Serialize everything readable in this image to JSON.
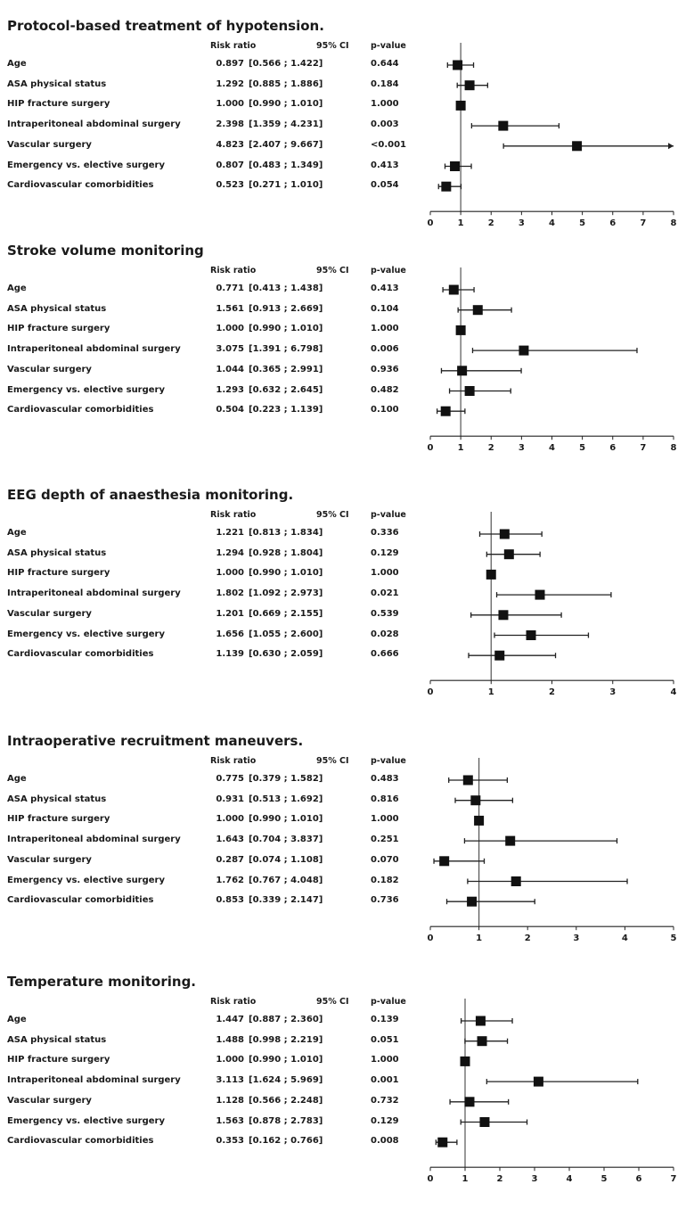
{
  "headers": {
    "risk_ratio": "Risk ratio",
    "ci": "95% CI",
    "p_value": "p-value"
  },
  "panels": [
    {
      "title": "Protocol-based treatment of hypotension.",
      "rows": [
        {
          "label": "Age",
          "rr_text": "0.897",
          "ci_text": "[0.566 ; 1.422]",
          "p_text": "0.644"
        },
        {
          "label": "ASA physical status",
          "rr_text": "1.292",
          "ci_text": "[0.885 ; 1.886]",
          "p_text": "0.184"
        },
        {
          "label": "HIP fracture surgery",
          "rr_text": "1.000",
          "ci_text": "[0.990 ; 1.010]",
          "p_text": "1.000"
        },
        {
          "label": "Intraperitoneal abdominal surgery",
          "rr_text": "2.398",
          "ci_text": "[1.359 ; 4.231]",
          "p_text": "0.003"
        },
        {
          "label": "Vascular surgery",
          "rr_text": "4.823",
          "ci_text": "[2.407 ; 9.667]",
          "p_text": "<0.001"
        },
        {
          "label": "Emergency vs. elective surgery",
          "rr_text": "0.807",
          "ci_text": "[0.483 ; 1.349]",
          "p_text": "0.413"
        },
        {
          "label": "Cardiovascular comorbidities",
          "rr_text": "0.523",
          "ci_text": "[0.271 ; 1.010]",
          "p_text": "0.054"
        }
      ]
    },
    {
      "title": "Stroke volume monitoring",
      "rows": [
        {
          "label": "Age",
          "rr_text": "0.771",
          "ci_text": "[0.413 ; 1.438]",
          "p_text": "0.413"
        },
        {
          "label": "ASA physical status",
          "rr_text": "1.561",
          "ci_text": "[0.913 ; 2.669]",
          "p_text": "0.104"
        },
        {
          "label": "HIP fracture surgery",
          "rr_text": "1.000",
          "ci_text": "[0.990 ; 1.010]",
          "p_text": "1.000"
        },
        {
          "label": "Intraperitoneal abdominal surgery",
          "rr_text": "3.075",
          "ci_text": "[1.391 ; 6.798]",
          "p_text": "0.006"
        },
        {
          "label": "Vascular surgery",
          "rr_text": "1.044",
          "ci_text": "[0.365 ; 2.991]",
          "p_text": "0.936"
        },
        {
          "label": "Emergency vs. elective surgery",
          "rr_text": "1.293",
          "ci_text": "[0.632 ; 2.645]",
          "p_text": "0.482"
        },
        {
          "label": "Cardiovascular comorbidities",
          "rr_text": "0.504",
          "ci_text": "[0.223 ; 1.139]",
          "p_text": "0.100"
        }
      ]
    },
    {
      "title": "EEG depth of anaesthesia monitoring.",
      "rows": [
        {
          "label": "Age",
          "rr_text": "1.221",
          "ci_text": "[0.813 ; 1.834]",
          "p_text": "0.336"
        },
        {
          "label": "ASA physical status",
          "rr_text": "1.294",
          "ci_text": "[0.928 ; 1.804]",
          "p_text": "0.129"
        },
        {
          "label": "HIP fracture surgery",
          "rr_text": "1.000",
          "ci_text": "[0.990 ; 1.010]",
          "p_text": "1.000"
        },
        {
          "label": "Intraperitoneal abdominal surgery",
          "rr_text": "1.802",
          "ci_text": "[1.092 ; 2.973]",
          "p_text": "0.021"
        },
        {
          "label": "Vascular surgery",
          "rr_text": "1.201",
          "ci_text": "[0.669 ; 2.155]",
          "p_text": "0.539"
        },
        {
          "label": "Emergency vs. elective surgery",
          "rr_text": "1.656",
          "ci_text": "[1.055 ; 2.600]",
          "p_text": "0.028"
        },
        {
          "label": "Cardiovascular comorbidities",
          "rr_text": "1.139",
          "ci_text": "[0.630 ; 2.059]",
          "p_text": "0.666"
        }
      ]
    },
    {
      "title": "Intraoperative recruitment maneuvers.",
      "rows": [
        {
          "label": "Age",
          "rr_text": "0.775",
          "ci_text": "[0.379 ; 1.582]",
          "p_text": "0.483"
        },
        {
          "label": "ASA physical status",
          "rr_text": "0.931",
          "ci_text": "[0.513 ; 1.692]",
          "p_text": "0.816"
        },
        {
          "label": "HIP fracture surgery",
          "rr_text": "1.000",
          "ci_text": "[0.990 ; 1.010]",
          "p_text": "1.000"
        },
        {
          "label": "Intraperitoneal abdominal surgery",
          "rr_text": "1.643",
          "ci_text": "[0.704 ; 3.837]",
          "p_text": "0.251"
        },
        {
          "label": "Vascular surgery",
          "rr_text": "0.287",
          "ci_text": "[0.074 ; 1.108]",
          "p_text": "0.070"
        },
        {
          "label": "Emergency vs. elective surgery",
          "rr_text": "1.762",
          "ci_text": "[0.767 ; 4.048]",
          "p_text": "0.182"
        },
        {
          "label": "Cardiovascular comorbidities",
          "rr_text": "0.853",
          "ci_text": "[0.339 ; 2.147]",
          "p_text": "0.736"
        }
      ]
    },
    {
      "title": "Temperature monitoring.",
      "rows": [
        {
          "label": "Age",
          "rr_text": "1.447",
          "ci_text": "[0.887 ; 2.360]",
          "p_text": "0.139"
        },
        {
          "label": "ASA physical status",
          "rr_text": "1.488",
          "ci_text": "[0.998 ; 2.219]",
          "p_text": "0.051"
        },
        {
          "label": "HIP fracture surgery",
          "rr_text": "1.000",
          "ci_text": "[0.990 ; 1.010]",
          "p_text": "1.000"
        },
        {
          "label": "Intraperitoneal abdominal surgery",
          "rr_text": "3.113",
          "ci_text": "[1.624 ; 5.969]",
          "p_text": "0.001"
        },
        {
          "label": "Vascular surgery",
          "rr_text": "1.128",
          "ci_text": "[0.566 ; 2.248]",
          "p_text": "0.732"
        },
        {
          "label": "Emergency vs. elective surgery",
          "rr_text": "1.563",
          "ci_text": "[0.878 ; 2.783]",
          "p_text": "0.129"
        },
        {
          "label": "Cardiovascular comorbidities",
          "rr_text": "0.353",
          "ci_text": "[0.162 ; 0.766]",
          "p_text": "0.008"
        }
      ]
    }
  ],
  "chart_data": [
    {
      "type": "forest",
      "title": "Protocol-based treatment of hypotension.",
      "xlim": [
        0,
        8
      ],
      "xticks": [
        0,
        1,
        2,
        3,
        4,
        5,
        6,
        7,
        8
      ],
      "reference_line": 1,
      "categories": [
        "Age",
        "ASA physical status",
        "HIP fracture surgery",
        "Intraperitoneal abdominal surgery",
        "Vascular surgery",
        "Emergency vs. elective surgery",
        "Cardiovascular comorbidities"
      ],
      "values": [
        0.897,
        1.292,
        1.0,
        2.398,
        4.823,
        0.807,
        0.523
      ],
      "ci_low": [
        0.566,
        0.885,
        0.99,
        1.359,
        2.407,
        0.483,
        0.271
      ],
      "ci_high": [
        1.422,
        1.886,
        1.01,
        4.231,
        9.667,
        1.349,
        1.01
      ],
      "p_values": [
        "0.644",
        "0.184",
        "1.000",
        "0.003",
        "<0.001",
        "0.413",
        "0.054"
      ]
    },
    {
      "type": "forest",
      "title": "Stroke volume monitoring",
      "xlim": [
        0,
        8
      ],
      "xticks": [
        0,
        1,
        2,
        3,
        4,
        5,
        6,
        7,
        8
      ],
      "reference_line": 1,
      "categories": [
        "Age",
        "ASA physical status",
        "HIP fracture surgery",
        "Intraperitoneal abdominal surgery",
        "Vascular surgery",
        "Emergency vs. elective surgery",
        "Cardiovascular comorbidities"
      ],
      "values": [
        0.771,
        1.561,
        1.0,
        3.075,
        1.044,
        1.293,
        0.504
      ],
      "ci_low": [
        0.413,
        0.913,
        0.99,
        1.391,
        0.365,
        0.632,
        0.223
      ],
      "ci_high": [
        1.438,
        2.669,
        1.01,
        6.798,
        2.991,
        2.645,
        1.139
      ],
      "p_values": [
        "0.413",
        "0.104",
        "1.000",
        "0.006",
        "0.936",
        "0.482",
        "0.100"
      ]
    },
    {
      "type": "forest",
      "title": "EEG depth of anaesthesia monitoring.",
      "xlim": [
        0,
        4
      ],
      "xticks": [
        0,
        1,
        2,
        3,
        4
      ],
      "reference_line": 1,
      "categories": [
        "Age",
        "ASA physical status",
        "HIP fracture surgery",
        "Intraperitoneal abdominal surgery",
        "Vascular surgery",
        "Emergency vs. elective surgery",
        "Cardiovascular comorbidities"
      ],
      "values": [
        1.221,
        1.294,
        1.0,
        1.802,
        1.201,
        1.656,
        1.139
      ],
      "ci_low": [
        0.813,
        0.928,
        0.99,
        1.092,
        0.669,
        1.055,
        0.63
      ],
      "ci_high": [
        1.834,
        1.804,
        1.01,
        2.973,
        2.155,
        2.6,
        2.059
      ],
      "p_values": [
        "0.336",
        "0.129",
        "1.000",
        "0.021",
        "0.539",
        "0.028",
        "0.666"
      ]
    },
    {
      "type": "forest",
      "title": "Intraoperative recruitment maneuvers.",
      "xlim": [
        0,
        5
      ],
      "xticks": [
        0,
        1,
        2,
        3,
        4,
        5
      ],
      "reference_line": 1,
      "categories": [
        "Age",
        "ASA physical status",
        "HIP fracture surgery",
        "Intraperitoneal abdominal surgery",
        "Vascular surgery",
        "Emergency vs. elective surgery",
        "Cardiovascular comorbidities"
      ],
      "values": [
        0.775,
        0.931,
        1.0,
        1.643,
        0.287,
        1.762,
        0.853
      ],
      "ci_low": [
        0.379,
        0.513,
        0.99,
        0.704,
        0.074,
        0.767,
        0.339
      ],
      "ci_high": [
        1.582,
        1.692,
        1.01,
        3.837,
        1.108,
        4.048,
        2.147
      ],
      "p_values": [
        "0.483",
        "0.816",
        "1.000",
        "0.251",
        "0.070",
        "0.182",
        "0.736"
      ]
    },
    {
      "type": "forest",
      "title": "Temperature monitoring.",
      "xlim": [
        0,
        7
      ],
      "xticks": [
        0,
        1,
        2,
        3,
        4,
        5,
        6,
        7
      ],
      "reference_line": 1,
      "categories": [
        "Age",
        "ASA physical status",
        "HIP fracture surgery",
        "Intraperitoneal abdominal surgery",
        "Vascular surgery",
        "Emergency vs. elective surgery",
        "Cardiovascular comorbidities"
      ],
      "values": [
        1.447,
        1.488,
        1.0,
        3.113,
        1.128,
        1.563,
        0.353
      ],
      "ci_low": [
        0.887,
        0.998,
        0.99,
        1.624,
        0.566,
        0.878,
        0.162
      ],
      "ci_high": [
        2.36,
        2.219,
        1.01,
        5.969,
        2.248,
        2.783,
        0.766
      ],
      "p_values": [
        "0.139",
        "0.051",
        "1.000",
        "0.001",
        "0.732",
        "0.129",
        "0.008"
      ]
    }
  ]
}
